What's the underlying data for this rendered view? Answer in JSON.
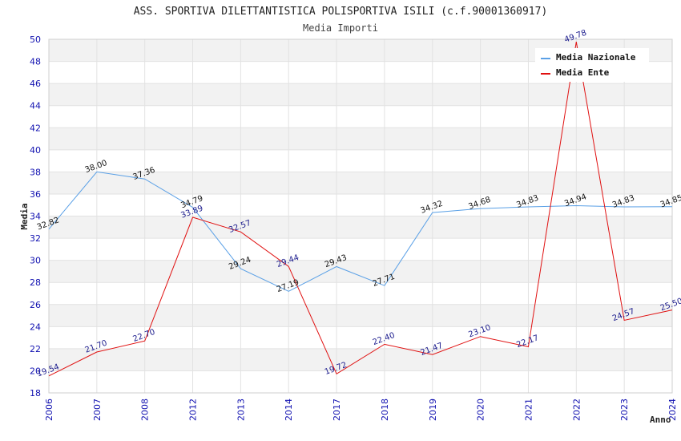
{
  "chart_data": {
    "type": "line",
    "title": "ASS. SPORTIVA DILETTANTISTICA POLISPORTIVA ISILI (c.f.90001360917)",
    "subtitle": "Media Importi",
    "xlabel": "Anno",
    "ylabel": "Media",
    "ylim": [
      18,
      50
    ],
    "ytick_step": 2,
    "categories": [
      "2006",
      "2007",
      "2008",
      "2012",
      "2013",
      "2014",
      "2017",
      "2018",
      "2019",
      "2020",
      "2021",
      "2022",
      "2023",
      "2024"
    ],
    "series": [
      {
        "name": "Media Nazionale",
        "color": "#5aa0e6",
        "label_color": "#111111",
        "values": [
          32.82,
          38.0,
          37.36,
          34.79,
          29.24,
          27.19,
          29.43,
          27.71,
          34.32,
          34.68,
          34.83,
          34.94,
          34.83,
          34.85
        ]
      },
      {
        "name": "Media Ente",
        "color": "#e01010",
        "label_color": "#1a1a8c",
        "values": [
          19.54,
          21.7,
          22.7,
          33.89,
          32.57,
          29.44,
          19.72,
          22.4,
          21.47,
          23.1,
          22.17,
          49.78,
          24.57,
          25.5
        ]
      }
    ],
    "legend_position": "top-right",
    "grid": true
  }
}
